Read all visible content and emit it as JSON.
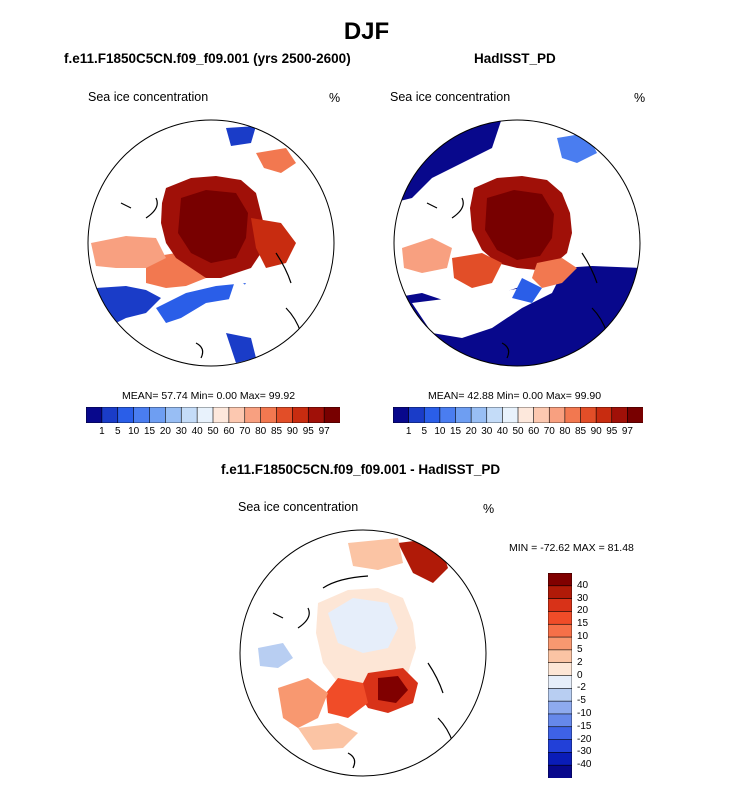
{
  "title": "DJF",
  "panels": [
    {
      "title": "f.e11.F1850C5CN.f09_f09.001 (yrs 2500-2600)",
      "variable": "Sea ice concentration",
      "units": "%",
      "stats": "MEAN=  57.74  Min=   0.00  Max=  99.92"
    },
    {
      "title": "HadISST_PD",
      "variable": "Sea ice concentration",
      "units": "%",
      "stats": "MEAN=  42.88  Min=   0.00  Max=  99.90"
    },
    {
      "title": "f.e11.F1850C5CN.f09_f09.001 - HadISST_PD",
      "variable": "Sea ice concentration",
      "units": "%",
      "stats": "MIN = -72.62 MAX =  81.48"
    }
  ],
  "chart_data": [
    {
      "type": "heatmap",
      "projection": "polar-stereographic-north",
      "title": "f.e11.F1850C5CN.f09_f09.001 (yrs 2500-2600)",
      "variable": "Sea ice concentration",
      "units": "%",
      "mean": 57.74,
      "min": 0.0,
      "max": 99.92,
      "colorbar": {
        "orientation": "horizontal",
        "levels": [
          "1",
          "5",
          "10",
          "15",
          "20",
          "30",
          "40",
          "50",
          "60",
          "70",
          "80",
          "85",
          "90",
          "95",
          "97"
        ],
        "colors": [
          "#08088c",
          "#1a3cc8",
          "#2a5ee8",
          "#4a7df0",
          "#6e9ef2",
          "#98bef4",
          "#c4dcf8",
          "#e8f2fc",
          "#fde8dc",
          "#fcc8b0",
          "#f8a080",
          "#f27850",
          "#e24e28",
          "#c82c10",
          "#a01008",
          "#780000"
        ]
      }
    },
    {
      "type": "heatmap",
      "projection": "polar-stereographic-north",
      "title": "HadISST_PD",
      "variable": "Sea ice concentration",
      "units": "%",
      "mean": 42.88,
      "min": 0.0,
      "max": 99.9,
      "colorbar": {
        "orientation": "horizontal",
        "levels": [
          "1",
          "5",
          "10",
          "15",
          "20",
          "30",
          "40",
          "50",
          "60",
          "70",
          "80",
          "85",
          "90",
          "95",
          "97"
        ],
        "colors": [
          "#08088c",
          "#1a3cc8",
          "#2a5ee8",
          "#4a7df0",
          "#6e9ef2",
          "#98bef4",
          "#c4dcf8",
          "#e8f2fc",
          "#fde8dc",
          "#fcc8b0",
          "#f8a080",
          "#f27850",
          "#e24e28",
          "#c82c10",
          "#a01008",
          "#780000"
        ]
      }
    },
    {
      "type": "heatmap",
      "projection": "polar-stereographic-north",
      "title": "f.e11.F1850C5CN.f09_f09.001 - HadISST_PD",
      "variable": "Sea ice concentration",
      "units": "%",
      "min": -72.62,
      "max": 81.48,
      "colorbar": {
        "orientation": "vertical",
        "levels": [
          "40",
          "30",
          "20",
          "15",
          "10",
          "5",
          "2",
          "0",
          "-2",
          "-5",
          "-10",
          "-15",
          "-20",
          "-30",
          "-40"
        ],
        "colors": [
          "#800000",
          "#b01a08",
          "#d83218",
          "#f04c28",
          "#f67048",
          "#f89870",
          "#fbc4a4",
          "#fde6d6",
          "#e6eefa",
          "#b8cef2",
          "#8eaaee",
          "#6688ea",
          "#3e62e6",
          "#2240d8",
          "#0a1cb8",
          "#08088c"
        ]
      }
    }
  ]
}
